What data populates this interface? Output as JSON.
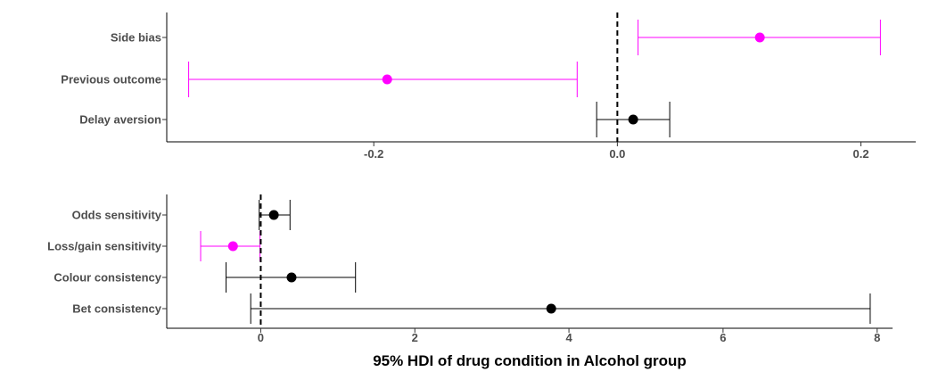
{
  "chart_data": [
    {
      "type": "forest",
      "title": "",
      "xlabel": "",
      "ylabel": "",
      "xlim": [
        -0.37,
        0.245
      ],
      "xticks": [
        -0.2,
        0.0,
        0.2
      ],
      "xtick_labels": [
        "-0.2",
        "0.0",
        "0.2"
      ],
      "reference_line": 0,
      "grid": false,
      "items": [
        {
          "label": "Side bias",
          "estimate": 0.117,
          "lower": 0.017,
          "upper": 0.216,
          "color": "#ff00ff"
        },
        {
          "label": "Previous outcome",
          "estimate": -0.189,
          "lower": -0.352,
          "upper": -0.033,
          "color": "#ff00ff"
        },
        {
          "label": "Delay aversion",
          "estimate": 0.013,
          "lower": -0.017,
          "upper": 0.043,
          "color": "#000000"
        }
      ]
    },
    {
      "type": "forest",
      "title": "",
      "xlabel": "95% HDI of drug condition in Alcohol group",
      "ylabel": "",
      "xlim": [
        -1.22,
        8.2
      ],
      "xticks": [
        0,
        2,
        4,
        6,
        8
      ],
      "xtick_labels": [
        "0",
        "2",
        "4",
        "6",
        "8"
      ],
      "reference_line": 0,
      "grid": false,
      "items": [
        {
          "label": "Odds sensitivity",
          "estimate": 0.17,
          "lower": -0.02,
          "upper": 0.38,
          "color": "#000000"
        },
        {
          "label": "Loss/gain sensitivity",
          "estimate": -0.36,
          "lower": -0.78,
          "upper": -0.01,
          "color": "#ff00ff"
        },
        {
          "label": "Colour consistency",
          "estimate": 0.4,
          "lower": -0.45,
          "upper": 1.23,
          "color": "#000000"
        },
        {
          "label": "Bet consistency",
          "estimate": 3.77,
          "lower": -0.13,
          "upper": 7.91,
          "color": "#000000"
        }
      ]
    }
  ]
}
